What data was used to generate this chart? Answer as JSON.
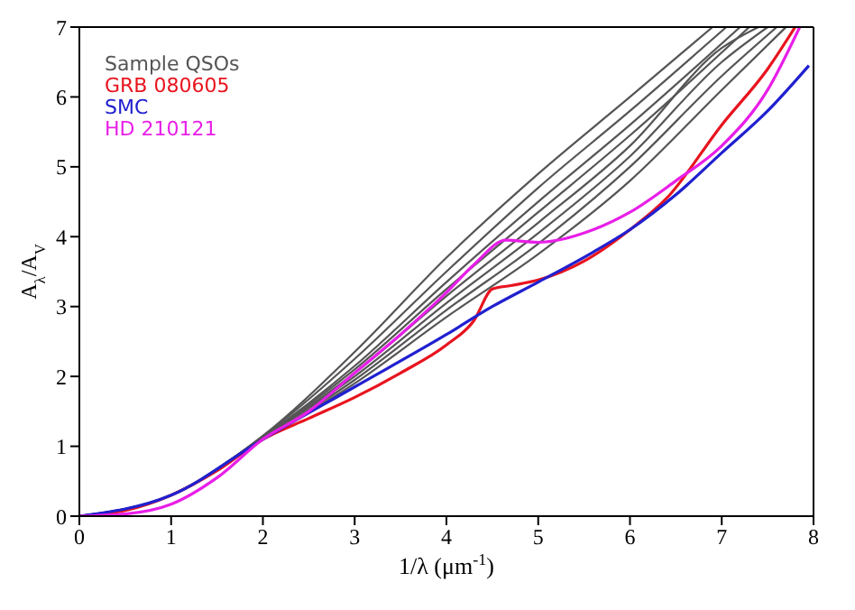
{
  "chart_data": {
    "type": "line",
    "xlabel": "1/λ (μm$^{-1}$)",
    "ylabel": "A$_{λ}$/A$_{V}$",
    "xlim": [
      0,
      8
    ],
    "ylim": [
      0,
      7
    ],
    "xticks": [
      0,
      1,
      2,
      3,
      4,
      5,
      6,
      7,
      8
    ],
    "yticks": [
      0,
      1,
      2,
      3,
      4,
      5,
      6,
      7
    ],
    "legend": "top left",
    "marker": "none",
    "line_style": "solid",
    "series": [
      {
        "name": "Sample QSOs",
        "color": "#555555",
        "x": [
          0,
          1,
          2,
          3,
          4,
          5,
          6,
          7,
          7.7
        ],
        "values": [
          0,
          0.3,
          1.1,
          1.9,
          2.85,
          3.75,
          4.8,
          6.1,
          7
        ]
      },
      {
        "color": "#555555",
        "x": [
          0,
          1,
          2,
          3,
          4,
          5,
          6,
          7,
          7.6
        ],
        "values": [
          0,
          0.3,
          1.1,
          1.95,
          2.95,
          3.9,
          5.0,
          6.3,
          7
        ]
      },
      {
        "color": "#555555",
        "x": [
          0,
          1,
          2,
          3,
          4,
          5,
          6,
          7,
          7.5
        ],
        "values": [
          0,
          0.3,
          1.12,
          2.0,
          3.05,
          4.05,
          5.15,
          6.5,
          7
        ]
      },
      {
        "color": "#555555",
        "x": [
          0,
          1,
          2,
          3,
          4,
          5,
          6,
          7,
          7.4
        ],
        "values": [
          0,
          0.3,
          1.12,
          2.05,
          3.15,
          4.2,
          5.3,
          6.7,
          7
        ]
      },
      {
        "color": "#555555",
        "x": [
          0,
          1,
          2,
          3,
          4,
          5,
          6,
          7.3
        ],
        "values": [
          0,
          0.3,
          1.13,
          2.1,
          3.25,
          4.35,
          5.45,
          7
        ]
      },
      {
        "color": "#555555",
        "x": [
          0,
          1,
          2,
          3,
          4,
          5,
          6,
          7.2
        ],
        "values": [
          0,
          0.3,
          1.13,
          2.15,
          3.35,
          4.5,
          5.6,
          7
        ]
      },
      {
        "color": "#555555",
        "x": [
          0,
          1,
          2,
          3,
          4,
          5,
          6,
          7.05
        ],
        "values": [
          0,
          0.3,
          1.14,
          2.25,
          3.5,
          4.7,
          5.8,
          7
        ]
      },
      {
        "color": "#555555",
        "x": [
          0,
          1,
          2,
          3,
          4,
          5,
          6,
          6.9
        ],
        "values": [
          0,
          0.3,
          1.15,
          2.35,
          3.7,
          4.9,
          6.0,
          7
        ]
      },
      {
        "name": "GRB 080605",
        "color": "#e8141e",
        "x": [
          0,
          0.5,
          1,
          1.5,
          2,
          2.5,
          3,
          3.5,
          4,
          4.3,
          4.5,
          4.7,
          5,
          5.5,
          6,
          6.4,
          7,
          7.5,
          7.8
        ],
        "values": [
          0,
          0.08,
          0.3,
          0.65,
          1.1,
          1.4,
          1.7,
          2.05,
          2.45,
          2.8,
          3.25,
          3.3,
          3.38,
          3.65,
          4.1,
          4.55,
          5.6,
          6.4,
          7
        ]
      },
      {
        "name": "SMC",
        "color": "#2020d0",
        "x": [
          0,
          1,
          2,
          3,
          4,
          4.5,
          5,
          5.6,
          6,
          6.5,
          7,
          7.5,
          7.95
        ],
        "values": [
          0,
          0.3,
          1.1,
          1.85,
          2.6,
          3.0,
          3.35,
          3.78,
          4.1,
          4.6,
          5.2,
          5.8,
          6.45
        ]
      },
      {
        "name": "HD 210121",
        "color": "#e81ee8",
        "x": [
          0,
          0.5,
          1,
          1.5,
          2,
          2.5,
          3,
          3.5,
          4,
          4.3,
          4.65,
          5,
          5.6,
          6,
          6.5,
          7,
          7.5,
          7.85
        ],
        "values": [
          0,
          0.03,
          0.17,
          0.55,
          1.1,
          1.5,
          2.05,
          2.6,
          3.2,
          3.6,
          3.95,
          3.92,
          4.1,
          4.35,
          4.8,
          5.3,
          6.1,
          7
        ]
      }
    ]
  }
}
